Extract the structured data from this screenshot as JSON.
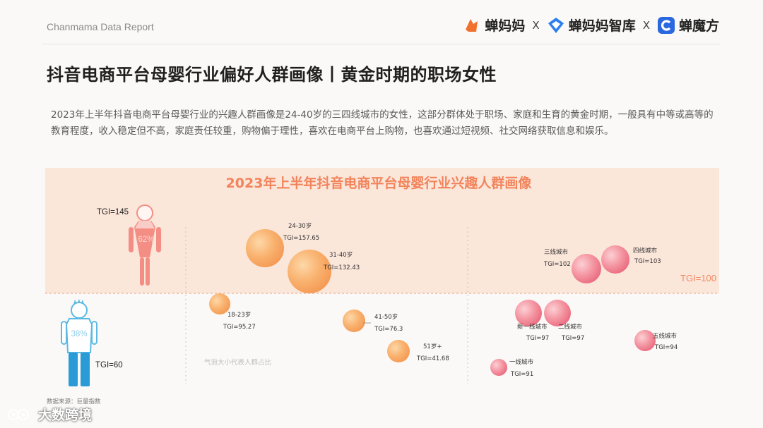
{
  "header": {
    "report_label": "Chanmama Data Report",
    "logos": [
      {
        "name": "蝉妈妈",
        "color": "#f0702e"
      },
      {
        "name": "蝉妈妈智库",
        "color": "#2d7ef0"
      },
      {
        "name": "蝉魔方",
        "color": "#2a68e0"
      }
    ],
    "separator": "X"
  },
  "title": "抖音电商平台母婴行业偏好人群画像丨黄金时期的职场女性",
  "intro": "2023年上半年抖音电商平台母婴行业的兴趣人群画像是24-40岁的三四线城市的女性，这部分群体处于职场、家庭和生育的黄金时期，一般具有中等或高等的教育程度，收入稳定但不高，家庭责任较重，购物偏于理性，喜欢在电商平台上购物，也喜欢通过短视频、社交网络获取信息和娱乐。",
  "footer": {
    "source": "数据来源：巨量指数",
    "watermark": "大数跨境"
  },
  "colors": {
    "title_orange": "#f2845c",
    "band": "#fbe6da",
    "female": "#f48e84",
    "male": "#5bb9e4",
    "male_dark": "#2b9bd7"
  },
  "chart_data": {
    "type": "scatter",
    "title": "2023年上半年抖音电商平台母婴行业兴趣人群画像",
    "threshold_label": "TGI=100",
    "threshold": 100,
    "size_note": "气泡大小代表人群占比",
    "gender": [
      {
        "icon": "female-icon",
        "share": "62%",
        "tgi": "TGI=145",
        "value": 145
      },
      {
        "icon": "male-icon",
        "share": "38%",
        "tgi": "TGI=60",
        "value": 60
      }
    ],
    "age_series": [
      {
        "label": "24-30岁",
        "tgi": "TGI=157.65",
        "value": 157.65
      },
      {
        "label": "31-40岁",
        "tgi": "TGI=132.43",
        "value": 132.43
      },
      {
        "label": "18-23岁",
        "tgi": "TGI=95.27",
        "value": 95.27
      },
      {
        "label": "41-50岁",
        "tgi": "TGI=76.3",
        "value": 76.3
      },
      {
        "label": "51岁+",
        "tgi": "TGI=41.68",
        "value": 41.68
      }
    ],
    "city_series": [
      {
        "label": "三线城市",
        "tgi": "TGI=102",
        "value": 102
      },
      {
        "label": "四线城市",
        "tgi": "TGI=103",
        "value": 103
      },
      {
        "label": "新一线城市",
        "tgi": "TGI=97",
        "value": 97
      },
      {
        "label": "二线城市",
        "tgi": "TGI=97",
        "value": 97
      },
      {
        "label": "五线城市",
        "tgi": "TGI=94",
        "value": 94
      },
      {
        "label": "一线城市",
        "tgi": "TGI=91",
        "value": 91
      }
    ]
  }
}
